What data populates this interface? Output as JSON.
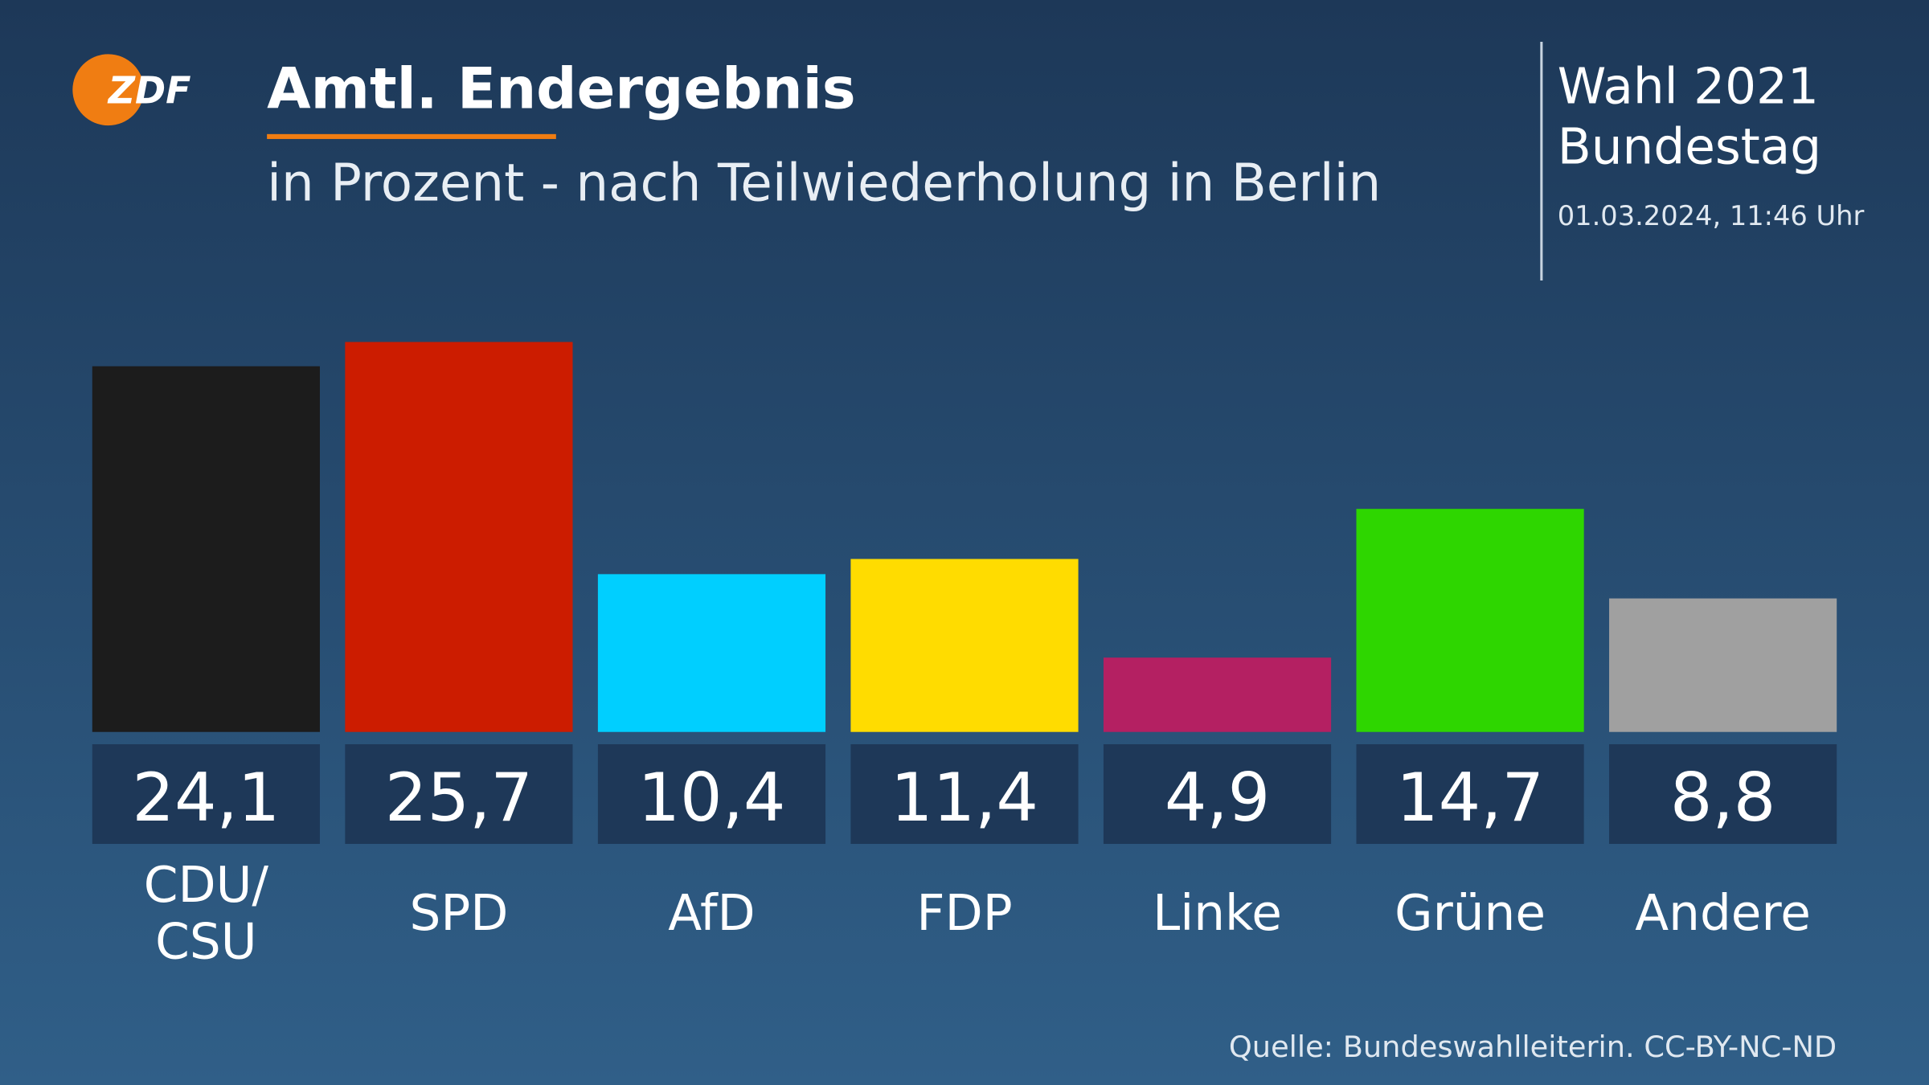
{
  "chart_data": {
    "type": "bar",
    "logo": "ZDF",
    "title": "Amtl. Endergebnis",
    "subtitle": "in Prozent - nach Teilwiederholung in Berlin",
    "election": "Wahl 2021",
    "election_body": "Bundestag",
    "timestamp": "01.03.2024, 11:46 Uhr",
    "source": "Quelle: Bundeswahlleiterin. CC-BY-NC-ND",
    "categories": [
      "CDU/CSU",
      "SPD",
      "AfD",
      "FDP",
      "Linke",
      "Grüne",
      "Andere"
    ],
    "values": [
      24.1,
      25.7,
      10.4,
      11.4,
      4.9,
      14.7,
      8.8
    ],
    "value_labels": [
      "24,1",
      "25,7",
      "10,4",
      "11,4",
      "4,9",
      "14,7",
      "8,8"
    ],
    "colors": [
      "#1c1c1c",
      "#cc1c00",
      "#00cfff",
      "#ffdc00",
      "#b42062",
      "#2ed600",
      "#a0a0a0"
    ]
  }
}
